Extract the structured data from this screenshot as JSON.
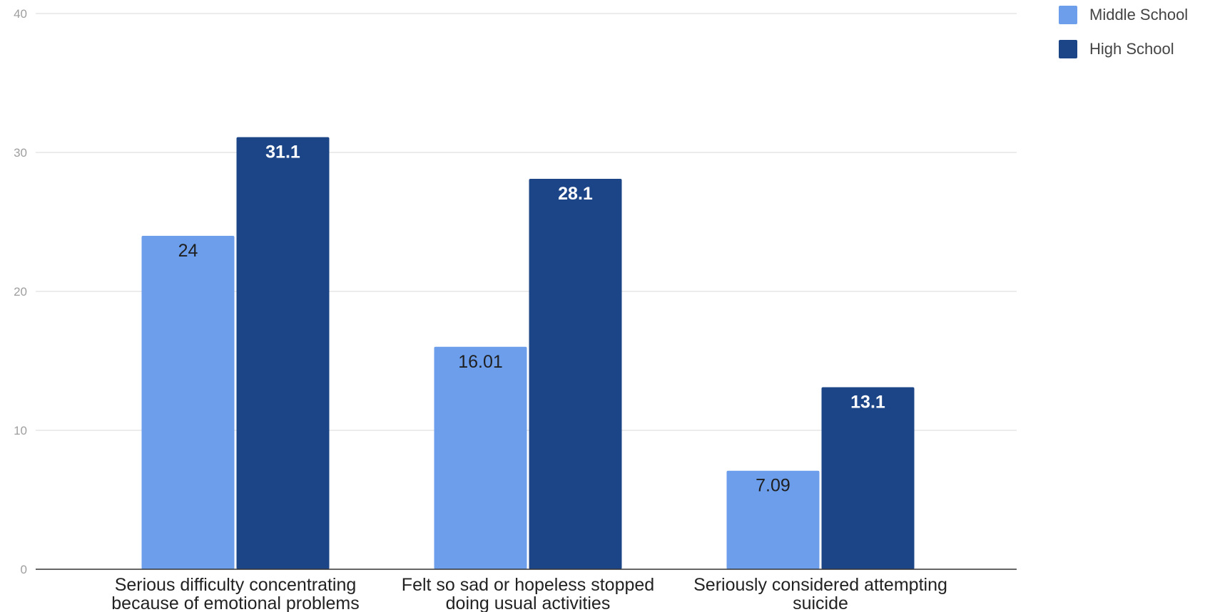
{
  "chart_data": {
    "type": "bar",
    "categories": [
      [
        "Serious difficulty concentrating",
        "because of emotional problems"
      ],
      [
        "Felt so sad or hopeless stopped",
        "doing usual activities"
      ],
      [
        "Seriously considered attempting",
        "suicide"
      ]
    ],
    "series": [
      {
        "name": "Middle School",
        "values": [
          24,
          16.01,
          7.09
        ],
        "labels": [
          "24",
          "16.01",
          "7.09"
        ],
        "color": "#6d9eeb",
        "label_color": "#1f1f1f"
      },
      {
        "name": "High School",
        "values": [
          31.1,
          28.1,
          13.1
        ],
        "labels": [
          "31.1",
          "28.1",
          "13.1"
        ],
        "color": "#1c4587",
        "label_color": "#ffffff"
      }
    ],
    "yticks": [
      "0",
      "10",
      "20",
      "30",
      "40"
    ],
    "ylim": [
      0,
      40
    ],
    "grid": true,
    "legend_position": "top-right",
    "title": "",
    "xlabel": "",
    "ylabel": ""
  }
}
